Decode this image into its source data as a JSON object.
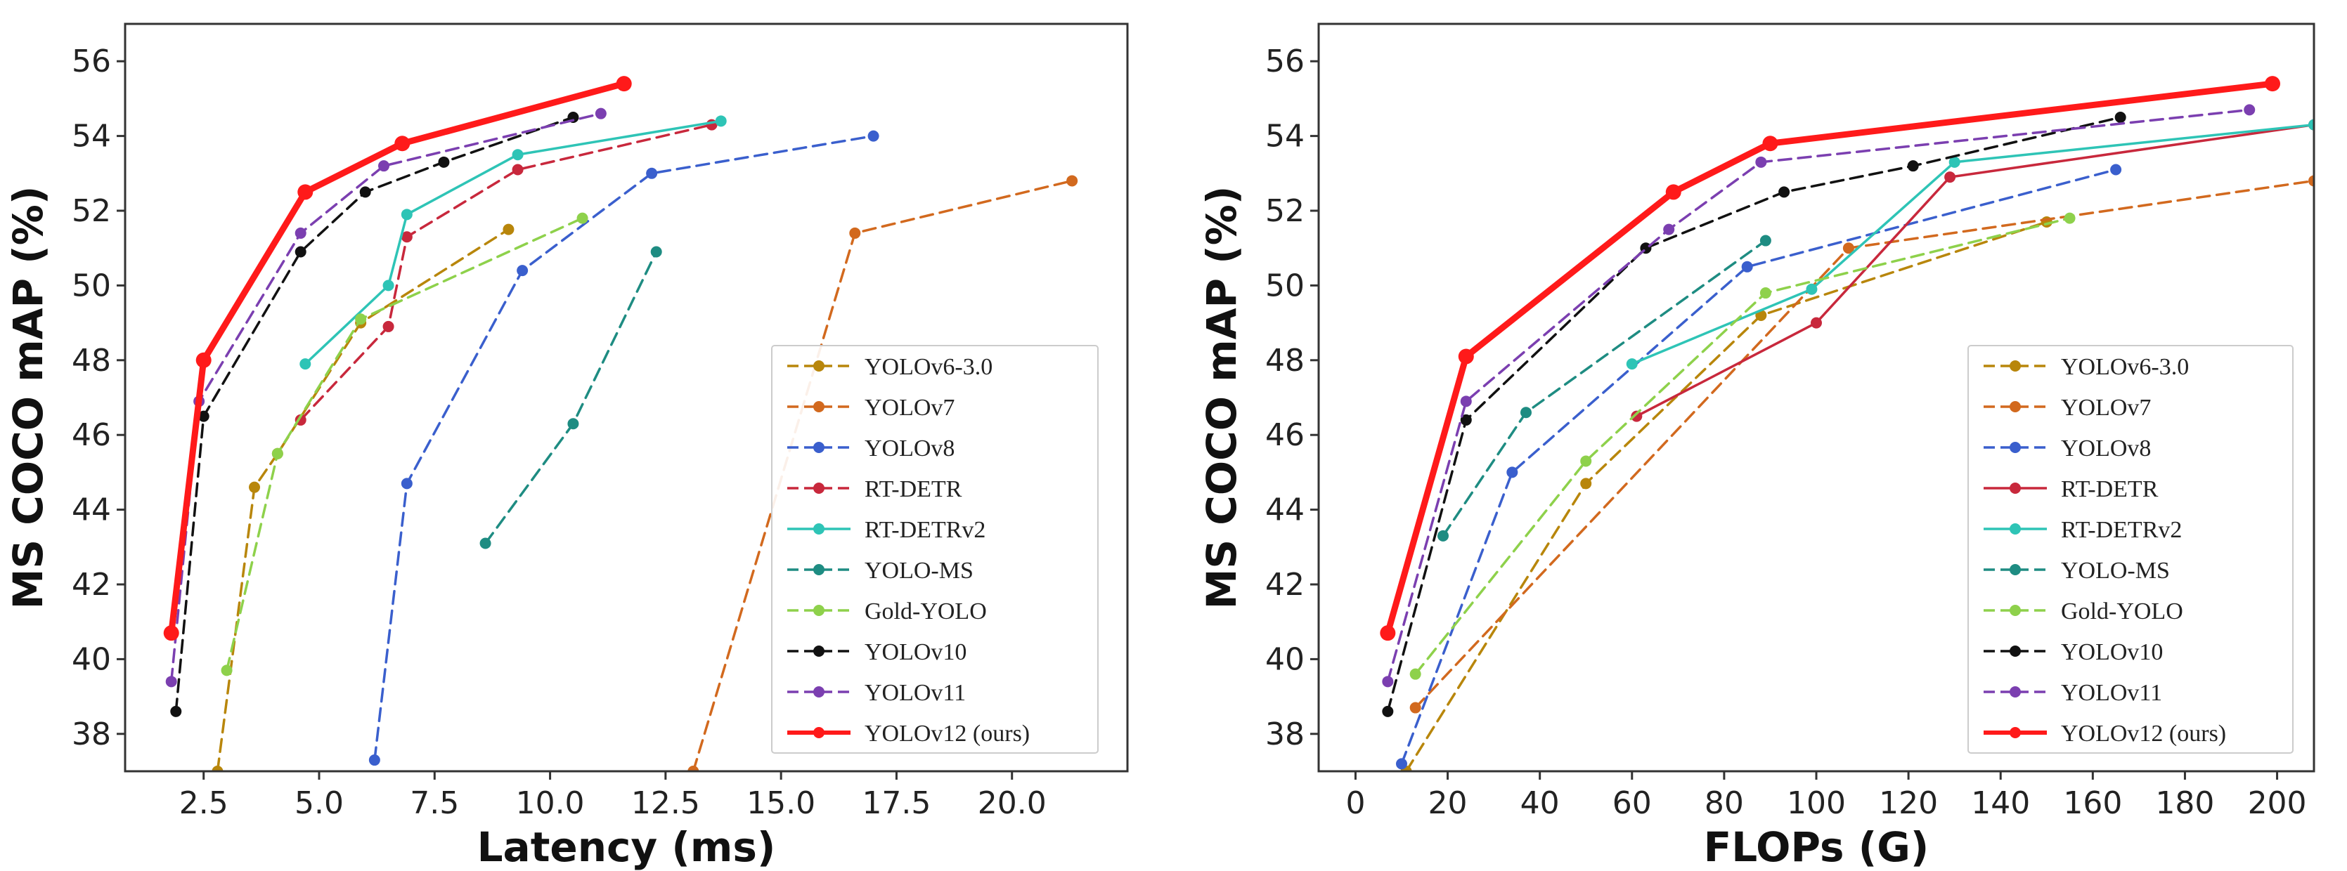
{
  "chart_data": [
    {
      "type": "line",
      "xlabel": "Latency (ms)",
      "ylabel": "MS COCO mAP (%)",
      "xlim": [
        0.8,
        22.5
      ],
      "ylim": [
        37,
        57
      ],
      "xticks": [
        2.5,
        5.0,
        7.5,
        10.0,
        12.5,
        15.0,
        17.5,
        20.0
      ],
      "xtick_labels": [
        "2.5",
        "5.0",
        "7.5",
        "10.0",
        "12.5",
        "15.0",
        "17.5",
        "20.0"
      ],
      "yticks": [
        38,
        40,
        42,
        44,
        46,
        48,
        50,
        52,
        54,
        56
      ],
      "ytick_labels": [
        "38",
        "40",
        "42",
        "44",
        "46",
        "48",
        "50",
        "52",
        "54",
        "56"
      ],
      "grid": false,
      "legend_position": "bottom-right",
      "series": [
        {
          "name": "YOLOv6-3.0",
          "color": "#b8860b",
          "dash": true,
          "bold": false,
          "x": [
            2.8,
            3.6,
            4.1,
            5.9,
            9.1
          ],
          "y": [
            37.0,
            44.6,
            45.5,
            49.0,
            51.5
          ]
        },
        {
          "name": "YOLOv7",
          "color": "#d2691e",
          "dash": true,
          "bold": false,
          "x": [
            13.1,
            16.6,
            21.3
          ],
          "y": [
            37.0,
            51.4,
            52.8
          ]
        },
        {
          "name": "YOLOv8",
          "color": "#3a5fcd",
          "dash": true,
          "bold": false,
          "x": [
            6.2,
            6.9,
            9.4,
            12.2,
            17.0
          ],
          "y": [
            37.3,
            44.7,
            50.4,
            53.0,
            54.0
          ]
        },
        {
          "name": "RT-DETR",
          "color": "#c8283c",
          "dash": true,
          "bold": false,
          "x": [
            4.6,
            6.5,
            6.9,
            9.3,
            13.5
          ],
          "y": [
            46.4,
            48.9,
            51.3,
            53.1,
            54.3
          ]
        },
        {
          "name": "RT-DETRv2",
          "color": "#2ec4b6",
          "dash": false,
          "bold": false,
          "x": [
            4.7,
            6.5,
            6.9,
            9.3,
            13.7
          ],
          "y": [
            47.9,
            50.0,
            51.9,
            53.5,
            54.4
          ]
        },
        {
          "name": "YOLO-MS",
          "color": "#1e8c82",
          "dash": true,
          "bold": false,
          "x": [
            8.6,
            10.5,
            12.3
          ],
          "y": [
            43.1,
            46.3,
            50.9
          ]
        },
        {
          "name": "Gold-YOLO",
          "color": "#8ed14b",
          "dash": true,
          "bold": false,
          "x": [
            3.0,
            4.1,
            5.9,
            10.7
          ],
          "y": [
            39.7,
            45.5,
            49.1,
            51.8
          ]
        },
        {
          "name": "YOLOv10",
          "color": "#111111",
          "dash": true,
          "bold": false,
          "x": [
            1.9,
            2.5,
            4.6,
            6.0,
            7.7,
            10.5
          ],
          "y": [
            38.6,
            46.5,
            50.9,
            52.5,
            53.3,
            54.5
          ]
        },
        {
          "name": "YOLOv11",
          "color": "#7b3fb0",
          "dash": true,
          "bold": false,
          "x": [
            1.8,
            2.4,
            4.6,
            6.4,
            11.1
          ],
          "y": [
            39.4,
            46.9,
            51.4,
            53.2,
            54.6
          ]
        },
        {
          "name": "YOLOv12 (ours)",
          "color": "#ff1a1a",
          "dash": false,
          "bold": true,
          "x": [
            1.8,
            2.5,
            4.7,
            6.8,
            11.6
          ],
          "y": [
            40.7,
            48.0,
            52.5,
            53.8,
            55.4
          ]
        }
      ]
    },
    {
      "type": "line",
      "xlabel": "FLOPs (G)",
      "ylabel": "MS COCO mAP (%)",
      "xlim": [
        -8,
        208
      ],
      "ylim": [
        37,
        57
      ],
      "xticks": [
        0,
        20,
        40,
        60,
        80,
        100,
        120,
        140,
        160,
        180,
        200
      ],
      "xtick_labels": [
        "0",
        "20",
        "40",
        "60",
        "80",
        "100",
        "120",
        "140",
        "160",
        "180",
        "200"
      ],
      "yticks": [
        38,
        40,
        42,
        44,
        46,
        48,
        50,
        52,
        54,
        56
      ],
      "ytick_labels": [
        "38",
        "40",
        "42",
        "44",
        "46",
        "48",
        "50",
        "52",
        "54",
        "56"
      ],
      "grid": false,
      "legend_position": "bottom-right",
      "series": [
        {
          "name": "YOLOv6-3.0",
          "color": "#b8860b",
          "dash": true,
          "bold": false,
          "x": [
            11,
            50,
            88,
            150
          ],
          "y": [
            37.0,
            44.7,
            49.2,
            51.7
          ]
        },
        {
          "name": "YOLOv7",
          "color": "#d2691e",
          "dash": true,
          "bold": false,
          "x": [
            13,
            107,
            208
          ],
          "y": [
            38.7,
            51.0,
            52.8
          ]
        },
        {
          "name": "YOLOv8",
          "color": "#3a5fcd",
          "dash": true,
          "bold": false,
          "x": [
            10,
            34,
            85,
            165
          ],
          "y": [
            37.2,
            45.0,
            50.5,
            53.1
          ]
        },
        {
          "name": "RT-DETR",
          "color": "#c8283c",
          "dash": false,
          "bold": false,
          "x": [
            61,
            100,
            129,
            208
          ],
          "y": [
            46.5,
            49.0,
            52.9,
            54.3
          ]
        },
        {
          "name": "RT-DETRv2",
          "color": "#2ec4b6",
          "dash": false,
          "bold": false,
          "x": [
            60,
            99,
            130,
            208
          ],
          "y": [
            47.9,
            49.9,
            53.3,
            54.3
          ]
        },
        {
          "name": "YOLO-MS",
          "color": "#1e8c82",
          "dash": true,
          "bold": false,
          "x": [
            19,
            37,
            89
          ],
          "y": [
            43.3,
            46.6,
            51.2
          ]
        },
        {
          "name": "Gold-YOLO",
          "color": "#8ed14b",
          "dash": true,
          "bold": false,
          "x": [
            13,
            50,
            89,
            155
          ],
          "y": [
            39.6,
            45.3,
            49.8,
            51.8
          ]
        },
        {
          "name": "YOLOv10",
          "color": "#111111",
          "dash": true,
          "bold": false,
          "x": [
            7,
            24,
            63,
            93,
            121,
            166
          ],
          "y": [
            38.6,
            46.4,
            51.0,
            52.5,
            53.2,
            54.5
          ]
        },
        {
          "name": "YOLOv11",
          "color": "#7b3fb0",
          "dash": true,
          "bold": false,
          "x": [
            7,
            24,
            68,
            88,
            194
          ],
          "y": [
            39.4,
            46.9,
            51.5,
            53.3,
            54.7
          ]
        },
        {
          "name": "YOLOv12 (ours)",
          "color": "#ff1a1a",
          "dash": false,
          "bold": true,
          "x": [
            7,
            24,
            69,
            90,
            199
          ],
          "y": [
            40.7,
            48.1,
            52.5,
            53.8,
            55.4
          ]
        }
      ]
    }
  ]
}
